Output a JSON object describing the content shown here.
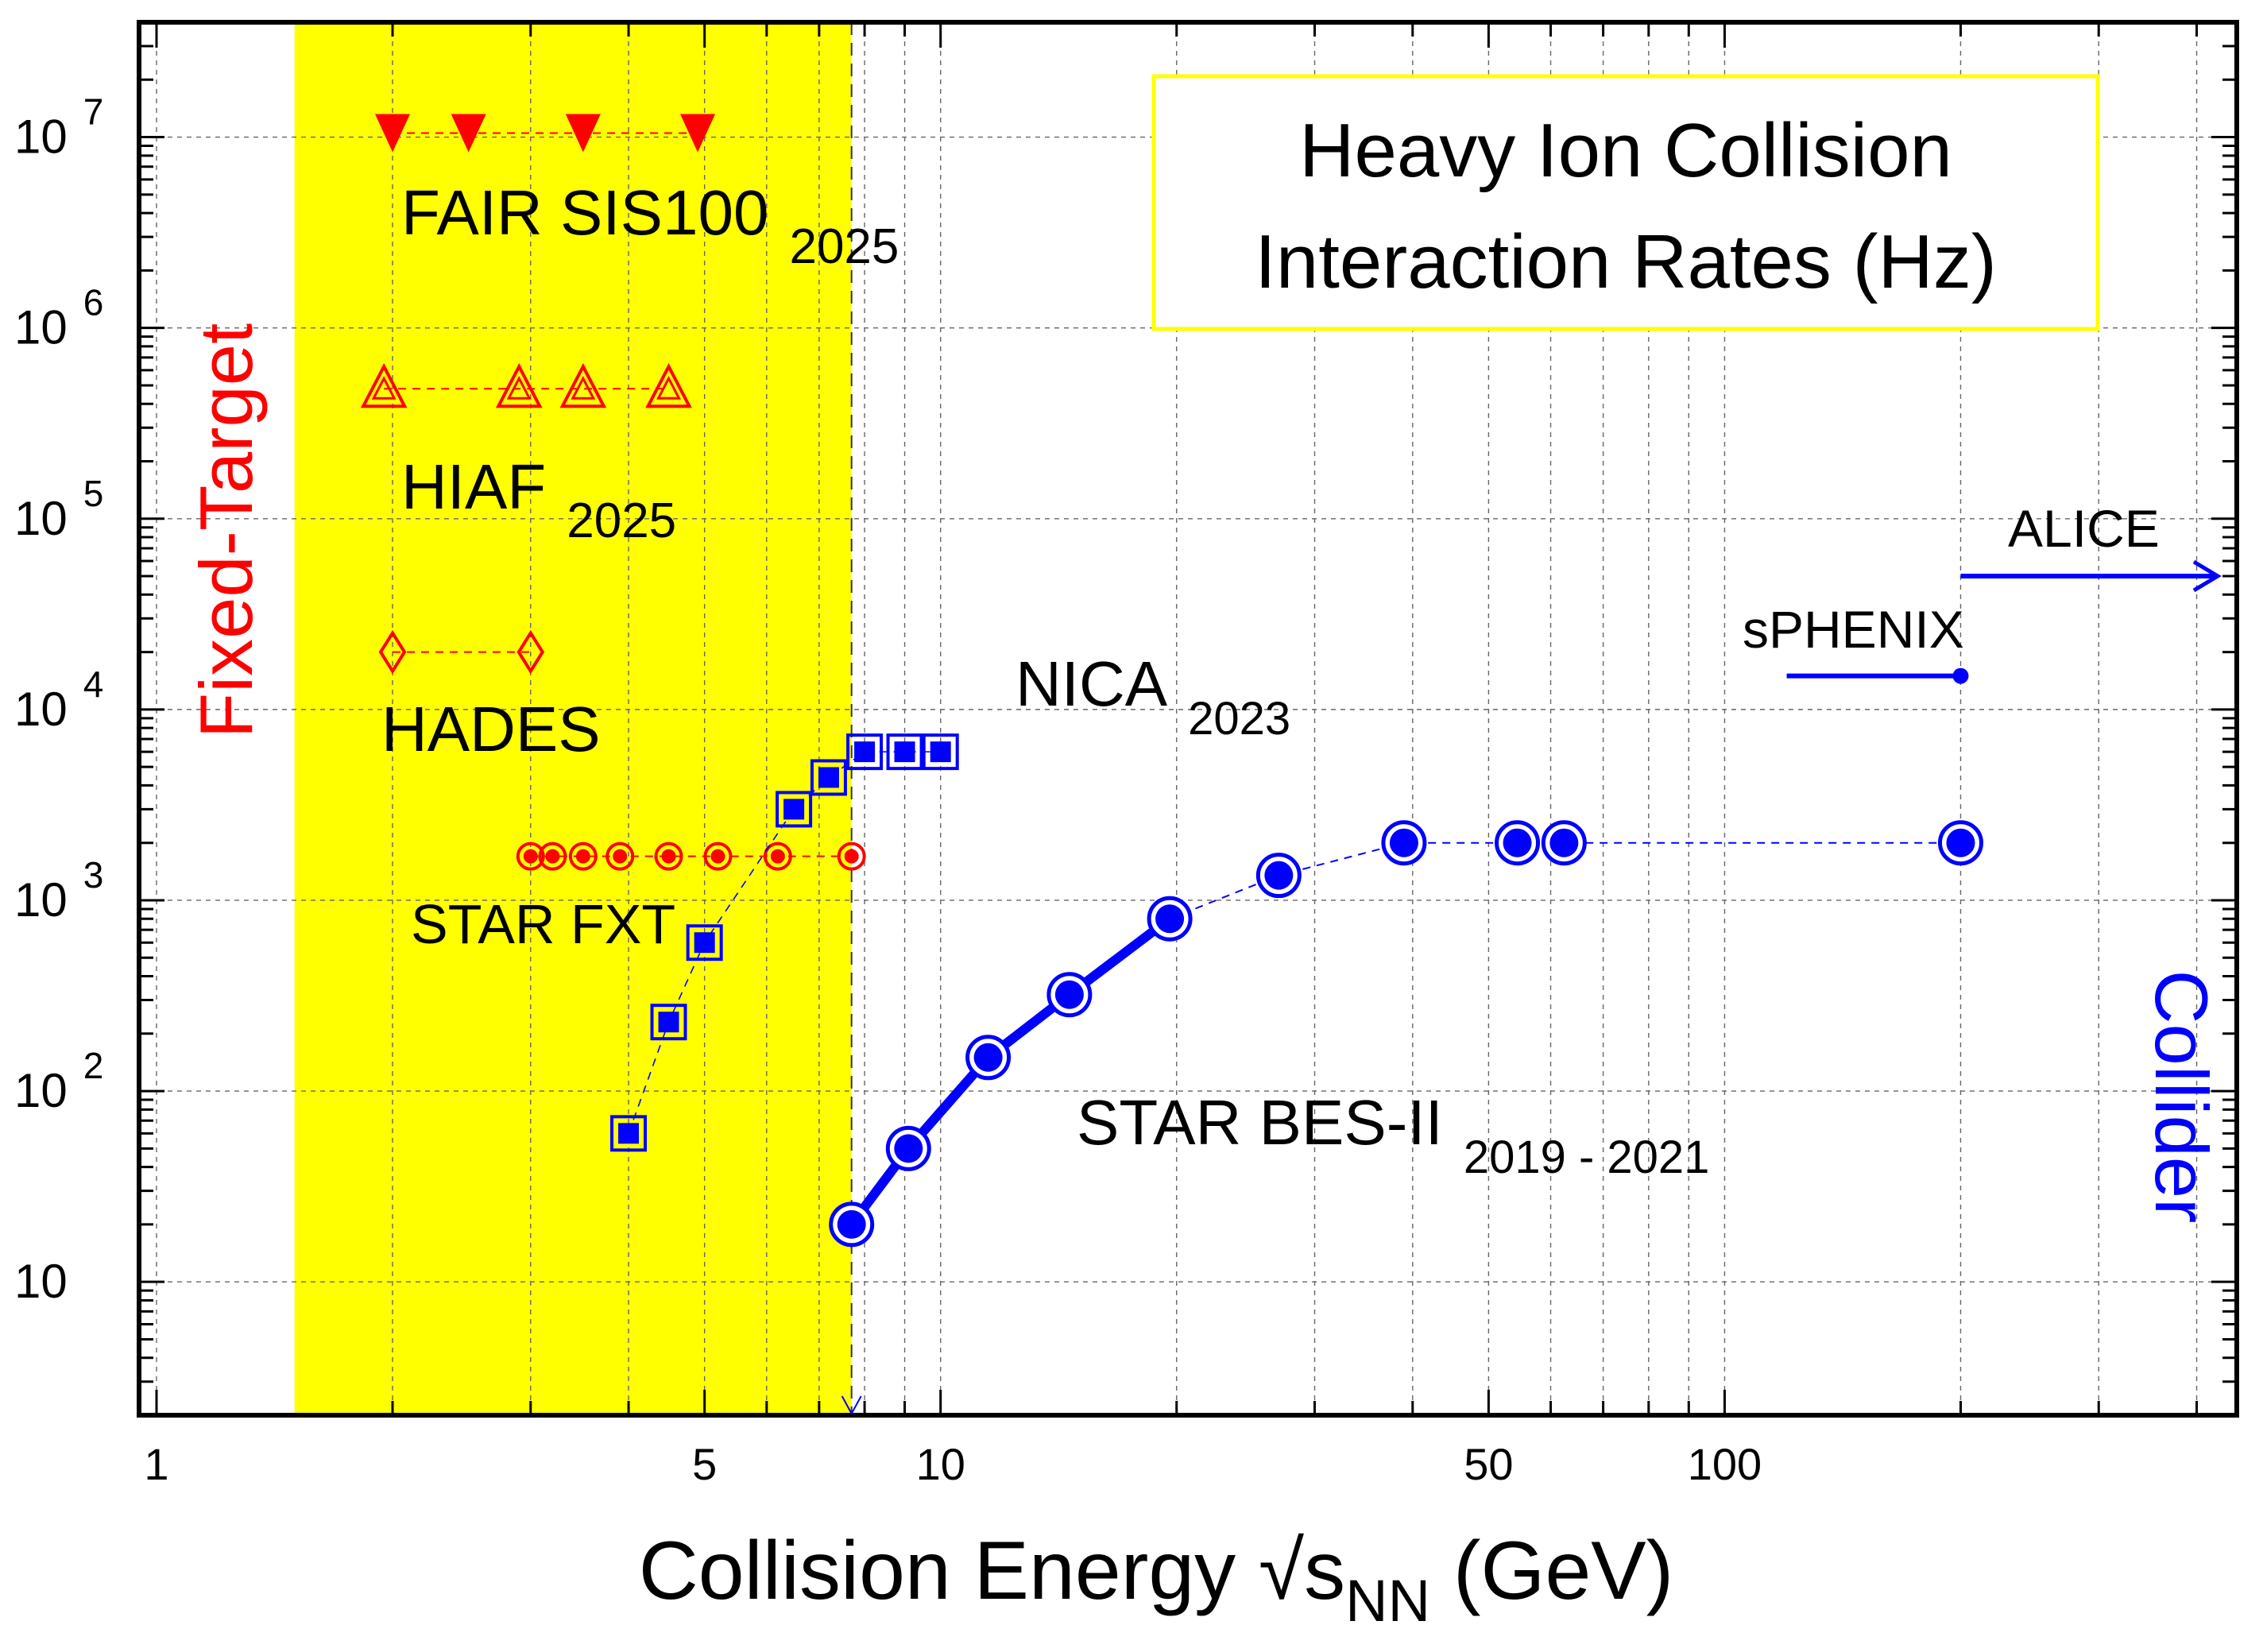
{
  "chart_data": {
    "type": "scatter",
    "title": "Heavy Ion Collision Interaction Rates (Hz)",
    "title_lines": [
      "Heavy Ion Collision",
      "Interaction Rates (Hz)"
    ],
    "xlabel": {
      "main": "Collision Energy √s",
      "sub": "NN",
      "unit": " (GeV)"
    },
    "x_scale": "log",
    "y_scale": "log",
    "xlim": [
      0.95,
      450
    ],
    "ylim": [
      2,
      40000000
    ],
    "x_ticks": [
      {
        "value": 1,
        "label": "1"
      },
      {
        "value": 5,
        "label": "5"
      },
      {
        "value": 10,
        "label": "10"
      },
      {
        "value": 50,
        "label": "50"
      },
      {
        "value": 100,
        "label": "100"
      }
    ],
    "y_ticks": [
      {
        "value": 10,
        "base": "10",
        "exp": ""
      },
      {
        "value": 100,
        "base": "10",
        "exp": "2"
      },
      {
        "value": 1000,
        "base": "10",
        "exp": "3"
      },
      {
        "value": 10000,
        "base": "10",
        "exp": "4"
      },
      {
        "value": 100000,
        "base": "10",
        "exp": "5"
      },
      {
        "value": 1000000,
        "base": "10",
        "exp": "6"
      },
      {
        "value": 10000000,
        "base": "10",
        "exp": "7"
      }
    ],
    "fixed_target_band": {
      "x_from": 1.5,
      "x_to": 7.7,
      "color": "#ffff00"
    },
    "region_labels": [
      {
        "text": "Fixed-Target",
        "color": "#ff0000",
        "side": "left"
      },
      {
        "text": "Collider",
        "color": "#0000ff",
        "side": "right"
      }
    ],
    "series": [
      {
        "name": "FAIR SIS100",
        "year": "2025",
        "marker": "triangle-down",
        "color": "#ff0000",
        "x": [
          2.0,
          2.5,
          3.5,
          4.9
        ],
        "y": [
          10500000,
          10500000,
          10500000,
          10500000
        ]
      },
      {
        "name": "HIAF",
        "year": "2025",
        "marker": "triangle-up-open",
        "color": "#ff0000",
        "x": [
          1.95,
          2.9,
          3.5,
          4.5
        ],
        "y": [
          480000,
          480000,
          480000,
          480000
        ]
      },
      {
        "name": "HADES",
        "year": "",
        "marker": "diamond-open",
        "color": "#ff0000",
        "x": [
          2.0,
          3.0
        ],
        "y": [
          20000,
          20000
        ]
      },
      {
        "name": "STAR FXT",
        "year": "",
        "marker": "circle-ring",
        "color": "#ff0000",
        "x": [
          3.0,
          3.2,
          3.5,
          3.9,
          4.5,
          5.2,
          6.2,
          7.7
        ],
        "y": [
          1700,
          1700,
          1700,
          1700,
          1700,
          1700,
          1700,
          1700
        ]
      },
      {
        "name": "NICA",
        "year": "2023",
        "marker": "square-open-filled",
        "color": "#0000ff",
        "x": [
          4.0,
          4.5,
          5.0,
          6.5,
          7.2,
          8.0,
          9.0,
          10.0
        ],
        "y": [
          60,
          230,
          600,
          3000,
          4400,
          6000,
          6000,
          6000
        ]
      },
      {
        "name": "STAR BES-II",
        "year": "2019 - 2021",
        "marker": "circle-ring-large",
        "color": "#0000ff",
        "x": [
          7.7,
          9.1,
          11.5,
          14.6,
          19.6,
          27,
          39,
          54.4,
          62.4,
          200
        ],
        "y": [
          20,
          50,
          150,
          320,
          800,
          1350,
          2000,
          2000,
          2000,
          2000
        ]
      },
      {
        "name": "sPHENIX",
        "year": "",
        "marker": "line-dot",
        "color": "#0000ff",
        "x": [
          120,
          200
        ],
        "y": [
          15000,
          15000
        ]
      },
      {
        "name": "ALICE",
        "year": "",
        "marker": "arrow",
        "color": "#0000ff",
        "x": [
          200,
          450
        ],
        "y": [
          50000,
          50000
        ]
      }
    ]
  }
}
